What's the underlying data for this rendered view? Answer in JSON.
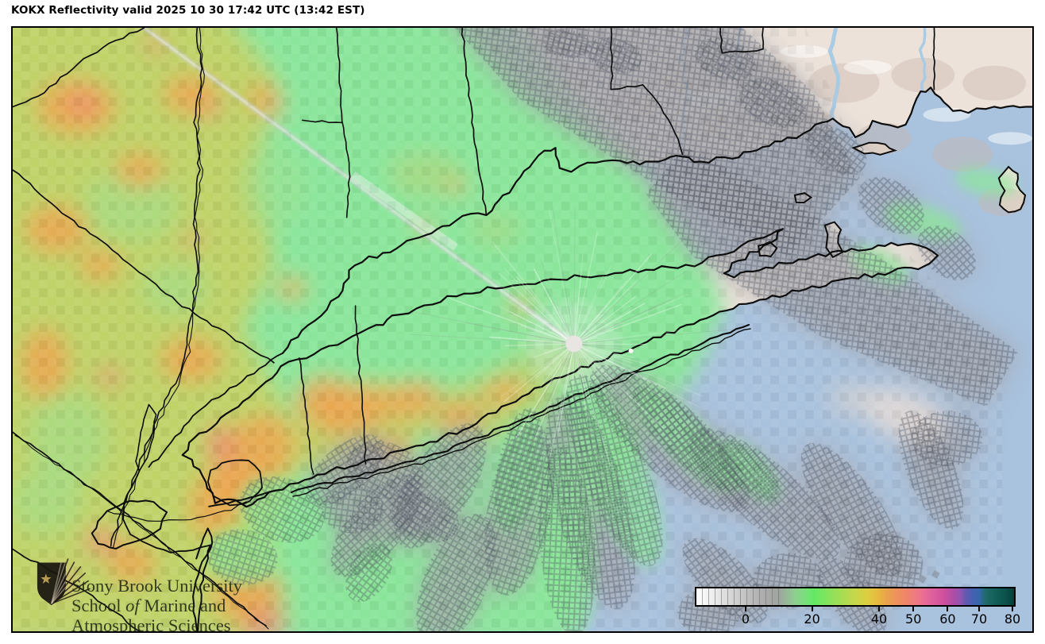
{
  "title": "KOKX Reflectivity valid 2025 10 30 17:42 UTC (13:42 EST)",
  "logo": {
    "line1": "Stony Brook University",
    "line2_pre": "School ",
    "line2_italic": "of",
    "line2_post": " Marine and",
    "line3": "Atmospheric Sciences"
  },
  "colorbar": {
    "min_dbz": -15,
    "max_dbz": 80,
    "ticks": [
      {
        "label": "0",
        "pct": 16.0
      },
      {
        "label": "20",
        "pct": 36.9
      },
      {
        "label": "40",
        "pct": 58.0
      },
      {
        "label": "50",
        "pct": 68.8
      },
      {
        "label": "60",
        "pct": 79.6
      },
      {
        "label": "70",
        "pct": 89.5
      },
      {
        "label": "80",
        "pct": 100.0
      }
    ],
    "stops": [
      [
        0,
        "#ffffff"
      ],
      [
        4,
        "#f1f1f1"
      ],
      [
        10,
        "#dadada"
      ],
      [
        16,
        "#c0c0c0"
      ],
      [
        21,
        "#acacac"
      ],
      [
        26,
        "#9fa49e"
      ],
      [
        31,
        "#8ecf8f"
      ],
      [
        35,
        "#74e276"
      ],
      [
        37,
        "#63e863"
      ],
      [
        41,
        "#82e45e"
      ],
      [
        46,
        "#a8dc52"
      ],
      [
        50,
        "#c6d74a"
      ],
      [
        54,
        "#decd40"
      ],
      [
        57,
        "#e7ba3e"
      ],
      [
        60,
        "#eaa24c"
      ],
      [
        63,
        "#ee925c"
      ],
      [
        66,
        "#ef8569"
      ],
      [
        69,
        "#ee7b80"
      ],
      [
        72,
        "#e86b97"
      ],
      [
        75,
        "#dc5d9e"
      ],
      [
        78,
        "#cf4f9d"
      ],
      [
        81,
        "#ad4da7"
      ],
      [
        83,
        "#9355ae"
      ],
      [
        85,
        "#5f59b1"
      ],
      [
        87,
        "#4660b0"
      ],
      [
        89,
        "#3568ac"
      ],
      [
        91,
        "#20696a"
      ],
      [
        94,
        "#12605a"
      ],
      [
        97,
        "#0b544c"
      ],
      [
        100,
        "#073e38"
      ]
    ]
  },
  "map": {
    "region": "New York City / Long Island / Connecticut coastal region",
    "water_color": "#a9c2de",
    "land_color": "#ece2da",
    "boundary_color": "#0d0d0d",
    "radar_marker_color": "#e9e5e2",
    "echo_colors": {
      "light_green": "#8be69b",
      "olive": "#c8cf60",
      "yellow": "#d9c455",
      "orange": "#f0a14d",
      "salmon": "#ee8672",
      "gray": "#a4a4a9"
    }
  }
}
